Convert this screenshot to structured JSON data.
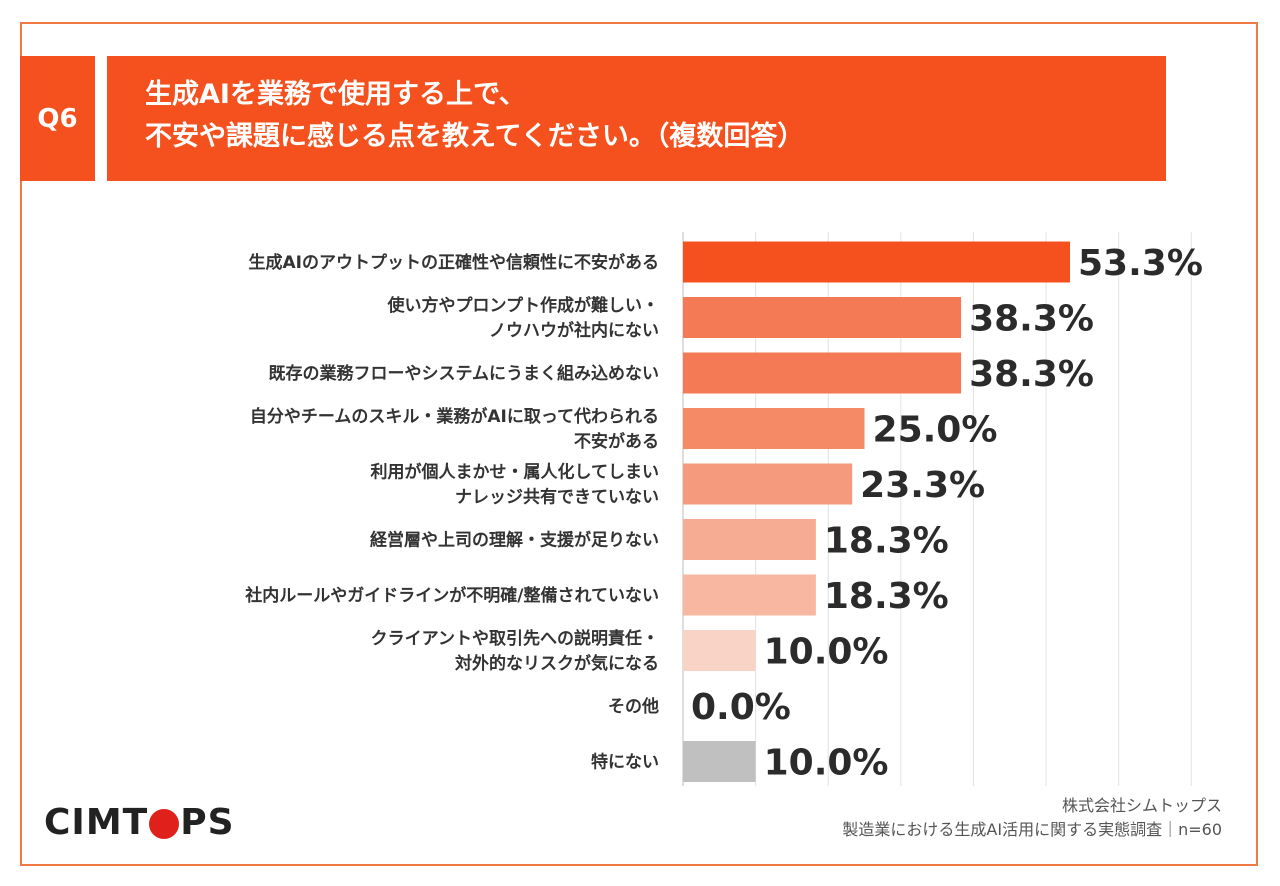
{
  "header": {
    "badge": "Q6",
    "title_line1": "生成AIを業務で使用する上で、",
    "title_line2": "不安や課題に感じる点を教えてください。（複数回答）"
  },
  "logo": {
    "text_before": "CIMT",
    "text_after": "PS",
    "dot_color": "#e0211b"
  },
  "source": {
    "company": "株式会社シムトップス",
    "survey": "製造業における生成AI活用に関する実態調査｜n=60"
  },
  "chart_data": {
    "type": "bar",
    "orientation": "horizontal",
    "categories": [
      [
        "生成AIのアウトプットの正確性や信頼性に不安がある"
      ],
      [
        "使い方やプロンプト作成が難しい・",
        "ノウハウが社内にない"
      ],
      [
        "既存の業務フローやシステムにうまく組み込めない"
      ],
      [
        "自分やチームのスキル・業務がAIに取って代わられる",
        "不安がある"
      ],
      [
        "利用が個人まかせ・属人化してしまい",
        "ナレッジ共有できていない"
      ],
      [
        "経営層や上司の理解・支援が足りない"
      ],
      [
        "社内ルールやガイドラインが不明確/整備されていない"
      ],
      [
        "クライアントや取引先への説明責任・",
        "対外的なリスクが気になる"
      ],
      [
        "その他"
      ],
      [
        "特にない"
      ]
    ],
    "values": [
      53.3,
      38.3,
      38.3,
      25.0,
      23.3,
      18.3,
      18.3,
      10.0,
      0.0,
      10.0
    ],
    "value_labels": [
      "53.3%",
      "38.3%",
      "38.3%",
      "25.0%",
      "23.3%",
      "18.3%",
      "18.3%",
      "10.0%",
      "0.0%",
      "10.0%"
    ],
    "colors": [
      "#f4511e",
      "#f47a55",
      "#f47a55",
      "#f58a66",
      "#f59a7c",
      "#f6ab93",
      "#f7b7a1",
      "#f9d3c5",
      "#f9d3c5",
      "#c0c0c0"
    ],
    "xlim": [
      0,
      70
    ],
    "grid": true,
    "title": "",
    "xlabel": "",
    "ylabel": ""
  }
}
